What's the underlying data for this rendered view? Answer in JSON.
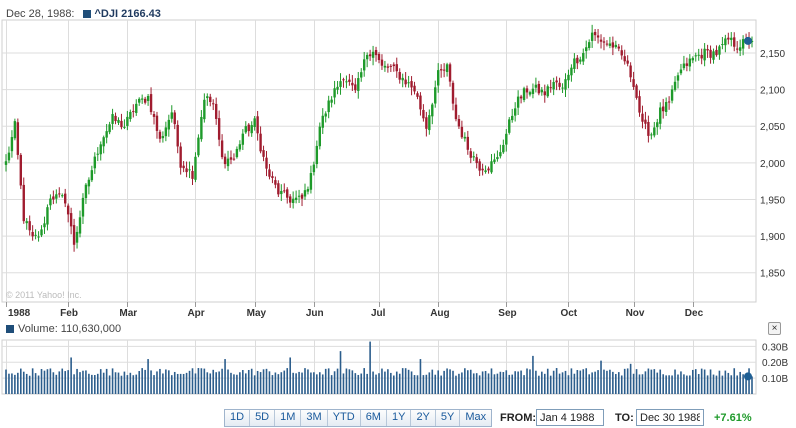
{
  "header": {
    "date": "Dec 28, 1988:",
    "ticker_label": "^DJI 2166.43"
  },
  "volume_header": {
    "label": "Volume: 110,630,000"
  },
  "watermark": "© 2011 Yahoo! Inc.",
  "close_label": "×",
  "ranges": [
    "1D",
    "5D",
    "1M",
    "3M",
    "YTD",
    "6M",
    "1Y",
    "2Y",
    "5Y",
    "Max"
  ],
  "from": {
    "label": "FROM:",
    "value": "Jan 4 1988"
  },
  "to": {
    "label": "TO:",
    "value": "Dec 30 1988"
  },
  "change": "+7.61%",
  "colors": {
    "up": "#1e9a2a",
    "down": "#a01c2f",
    "volume": "#2b5d8c",
    "grid": "#dddddd",
    "marker": "#1f5f94"
  },
  "chart_data": [
    {
      "type": "candlestick",
      "series_name": "^DJI",
      "x_labels": [
        "1988",
        "Feb",
        "Mar",
        "Apr",
        "May",
        "Jun",
        "Jul",
        "Aug",
        "Sep",
        "Oct",
        "Nov",
        "Dec"
      ],
      "x_label_day": [
        0,
        21,
        41,
        64,
        84,
        104,
        126,
        146,
        169,
        190,
        212,
        232
      ],
      "y_ticks": [
        "1,850",
        "1,900",
        "1,950",
        "2,000",
        "2,050",
        "2,100",
        "2,150"
      ],
      "y_tick_values": [
        1850,
        1900,
        1950,
        2000,
        2050,
        2100,
        2150
      ],
      "ylim": [
        1810,
        2195
      ],
      "trading_days": 253,
      "keypoints": [
        [
          0,
          2000
        ],
        [
          3,
          2050
        ],
        [
          6,
          1925
        ],
        [
          9,
          1895
        ],
        [
          12,
          1905
        ],
        [
          15,
          1955
        ],
        [
          20,
          1950
        ],
        [
          23,
          1890
        ],
        [
          27,
          1965
        ],
        [
          32,
          2030
        ],
        [
          36,
          2060
        ],
        [
          40,
          2050
        ],
        [
          44,
          2080
        ],
        [
          48,
          2090
        ],
        [
          52,
          2030
        ],
        [
          56,
          2070
        ],
        [
          59,
          2000
        ],
        [
          63,
          1985
        ],
        [
          67,
          2090
        ],
        [
          70,
          2080
        ],
        [
          73,
          2005
        ],
        [
          77,
          2005
        ],
        [
          80,
          2040
        ],
        [
          84,
          2055
        ],
        [
          88,
          1990
        ],
        [
          92,
          1960
        ],
        [
          96,
          1950
        ],
        [
          100,
          1950
        ],
        [
          103,
          1980
        ],
        [
          106,
          2050
        ],
        [
          110,
          2090
        ],
        [
          114,
          2120
        ],
        [
          118,
          2095
        ],
        [
          122,
          2150
        ],
        [
          124,
          2155
        ],
        [
          127,
          2130
        ],
        [
          130,
          2130
        ],
        [
          134,
          2115
        ],
        [
          138,
          2100
        ],
        [
          142,
          2050
        ],
        [
          146,
          2120
        ],
        [
          149,
          2130
        ],
        [
          152,
          2060
        ],
        [
          156,
          2020
        ],
        [
          160,
          1995
        ],
        [
          163,
          1995
        ],
        [
          166,
          2005
        ],
        [
          169,
          2040
        ],
        [
          172,
          2080
        ],
        [
          176,
          2100
        ],
        [
          179,
          2100
        ],
        [
          182,
          2095
        ],
        [
          185,
          2110
        ],
        [
          188,
          2100
        ],
        [
          191,
          2135
        ],
        [
          195,
          2150
        ],
        [
          198,
          2175
        ],
        [
          202,
          2165
        ],
        [
          205,
          2160
        ],
        [
          209,
          2140
        ],
        [
          212,
          2110
        ],
        [
          215,
          2050
        ],
        [
          218,
          2040
        ],
        [
          221,
          2070
        ],
        [
          224,
          2080
        ],
        [
          227,
          2120
        ],
        [
          230,
          2135
        ],
        [
          233,
          2145
        ],
        [
          236,
          2150
        ],
        [
          240,
          2150
        ],
        [
          244,
          2168
        ],
        [
          247,
          2160
        ],
        [
          252,
          2168
        ]
      ],
      "last_close": 2166.43
    },
    {
      "type": "bar",
      "series_name": "Volume",
      "y_ticks": [
        "0.10B",
        "0.20B",
        "0.30B"
      ],
      "y_tick_values": [
        0.1,
        0.2,
        0.3
      ],
      "ylim": [
        0,
        0.34
      ],
      "baseline": 0.14,
      "spikes": [
        [
          22,
          0.23
        ],
        [
          48,
          0.22
        ],
        [
          74,
          0.22
        ],
        [
          96,
          0.23
        ],
        [
          113,
          0.27
        ],
        [
          123,
          0.33
        ],
        [
          140,
          0.22
        ],
        [
          178,
          0.24
        ],
        [
          201,
          0.21
        ],
        [
          211,
          0.19
        ]
      ],
      "last_value": 0.11063
    }
  ]
}
